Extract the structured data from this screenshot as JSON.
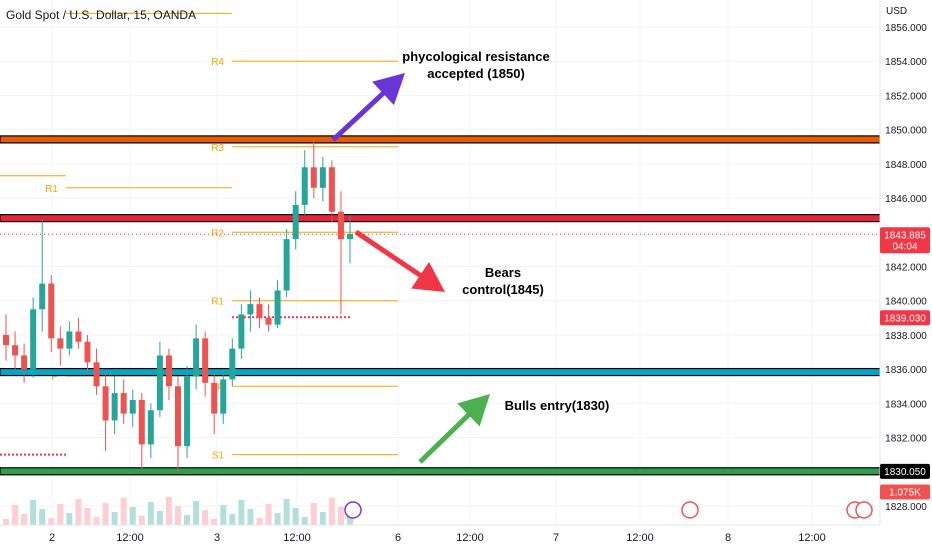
{
  "header": {
    "title": "Gold Spot / U.S. Dollar, 15, OANDA",
    "currency": "USD"
  },
  "colors": {
    "up": "#26a69a",
    "down": "#ef5350",
    "pivot": "#f7a600",
    "resistance_band": "#e65c00",
    "bears_band": "#e8223a",
    "bull_band": "#00a9c8",
    "support_band": "#2e9e4f",
    "arrow_purple": "#6a35d6",
    "arrow_red": "#f23645",
    "arrow_green": "#4caf50"
  },
  "chart_data": {
    "type": "candlestick",
    "title": "Gold Spot / U.S. Dollar, 15, OANDA",
    "ylim": [
      1827,
      1857
    ],
    "y_ticks": [
      "1856.000",
      "1854.000",
      "1852.000",
      "1850.000",
      "1848.000",
      "1846.000",
      "1844.000",
      "1842.000",
      "1840.000",
      "1838.000",
      "1836.000",
      "1834.000",
      "1832.000",
      "1830.000",
      "1828.000"
    ],
    "x_ticks": [
      "2",
      "12:00",
      "3",
      "12:00",
      "6",
      "12:00",
      "7",
      "12:00",
      "8",
      "12:00"
    ],
    "candles": [
      {
        "o": 1838.0,
        "h": 1839.2,
        "l": 1836.5,
        "c": 1837.4
      },
      {
        "o": 1837.4,
        "h": 1838.2,
        "l": 1836.0,
        "c": 1836.8
      },
      {
        "o": 1836.8,
        "h": 1837.5,
        "l": 1835.2,
        "c": 1836.0
      },
      {
        "o": 1836.0,
        "h": 1840.2,
        "l": 1835.5,
        "c": 1839.5
      },
      {
        "o": 1839.5,
        "h": 1844.8,
        "l": 1838.2,
        "c": 1841.0
      },
      {
        "o": 1841.0,
        "h": 1841.5,
        "l": 1837.0,
        "c": 1837.8
      },
      {
        "o": 1837.8,
        "h": 1838.5,
        "l": 1836.2,
        "c": 1837.2
      },
      {
        "o": 1837.2,
        "h": 1838.8,
        "l": 1836.8,
        "c": 1838.2
      },
      {
        "o": 1838.2,
        "h": 1839.0,
        "l": 1837.2,
        "c": 1837.6
      },
      {
        "o": 1837.6,
        "h": 1838.0,
        "l": 1835.8,
        "c": 1836.4
      },
      {
        "o": 1836.4,
        "h": 1837.2,
        "l": 1834.5,
        "c": 1835.0
      },
      {
        "o": 1835.0,
        "h": 1835.8,
        "l": 1831.2,
        "c": 1833.0
      },
      {
        "o": 1833.0,
        "h": 1835.6,
        "l": 1832.2,
        "c": 1834.6
      },
      {
        "o": 1834.6,
        "h": 1835.4,
        "l": 1832.8,
        "c": 1833.4
      },
      {
        "o": 1833.4,
        "h": 1834.8,
        "l": 1832.6,
        "c": 1834.2
      },
      {
        "o": 1834.2,
        "h": 1834.6,
        "l": 1830.2,
        "c": 1831.6
      },
      {
        "o": 1831.6,
        "h": 1834.0,
        "l": 1830.8,
        "c": 1833.6
      },
      {
        "o": 1833.6,
        "h": 1837.6,
        "l": 1833.2,
        "c": 1836.8
      },
      {
        "o": 1836.8,
        "h": 1837.2,
        "l": 1834.2,
        "c": 1835.0
      },
      {
        "o": 1835.0,
        "h": 1835.6,
        "l": 1830.0,
        "c": 1831.5
      },
      {
        "o": 1831.5,
        "h": 1836.2,
        "l": 1830.8,
        "c": 1835.6
      },
      {
        "o": 1835.6,
        "h": 1838.6,
        "l": 1834.8,
        "c": 1837.8
      },
      {
        "o": 1837.8,
        "h": 1838.2,
        "l": 1834.4,
        "c": 1835.2
      },
      {
        "o": 1835.2,
        "h": 1835.8,
        "l": 1832.2,
        "c": 1833.4
      },
      {
        "o": 1833.4,
        "h": 1836.0,
        "l": 1832.8,
        "c": 1835.4
      },
      {
        "o": 1835.4,
        "h": 1837.8,
        "l": 1835.0,
        "c": 1837.2
      },
      {
        "o": 1837.2,
        "h": 1839.8,
        "l": 1836.6,
        "c": 1839.2
      },
      {
        "o": 1839.2,
        "h": 1840.6,
        "l": 1838.2,
        "c": 1839.8
      },
      {
        "o": 1839.8,
        "h": 1840.2,
        "l": 1838.4,
        "c": 1839.0
      },
      {
        "o": 1839.0,
        "h": 1839.8,
        "l": 1838.2,
        "c": 1838.6
      },
      {
        "o": 1838.6,
        "h": 1841.2,
        "l": 1838.4,
        "c": 1840.6
      },
      {
        "o": 1840.6,
        "h": 1844.2,
        "l": 1840.2,
        "c": 1843.6
      },
      {
        "o": 1843.6,
        "h": 1846.4,
        "l": 1843.0,
        "c": 1845.6
      },
      {
        "o": 1845.6,
        "h": 1848.8,
        "l": 1845.0,
        "c": 1847.8
      },
      {
        "o": 1847.8,
        "h": 1849.4,
        "l": 1846.0,
        "c": 1846.6
      },
      {
        "o": 1846.6,
        "h": 1848.4,
        "l": 1845.8,
        "c": 1847.8
      },
      {
        "o": 1847.8,
        "h": 1848.2,
        "l": 1844.6,
        "c": 1845.2
      },
      {
        "o": 1845.2,
        "h": 1846.4,
        "l": 1839.2,
        "c": 1843.6
      },
      {
        "o": 1843.6,
        "h": 1845.0,
        "l": 1842.2,
        "c": 1843.9
      }
    ],
    "pivot_levels": [
      {
        "name": "R4",
        "value": 1854.0
      },
      {
        "name": "R3",
        "value": 1849.0
      },
      {
        "name": "R2",
        "value": 1844.0
      },
      {
        "name": "R1",
        "value": 1840.0
      },
      {
        "name": "P",
        "value": 1835.0
      },
      {
        "name": "S1",
        "value": 1831.0
      }
    ],
    "prev_pivot_levels": [
      {
        "name": "R1",
        "value": 1846.6
      },
      {
        "name": "P",
        "value": 1835.6
      }
    ],
    "zones": [
      {
        "name": "resistance",
        "value": 1849.4
      },
      {
        "name": "bears",
        "value": 1844.8
      },
      {
        "name": "bulls",
        "value": 1835.8
      },
      {
        "name": "support",
        "value": 1830.0
      }
    ],
    "price_tags": [
      {
        "label": "1843.885",
        "sub": "04:04",
        "value": 1843.885,
        "color": "#f23645"
      },
      {
        "label": "1839.030",
        "value": 1839.03,
        "color": "#f23645"
      },
      {
        "label": "1830.050",
        "value": 1830.05,
        "color": "#000000"
      },
      {
        "label": "1.075K",
        "value": 1828.85,
        "color": "#ef5350"
      }
    ]
  },
  "annotations": {
    "resistance_text": "phycological resistance\naccepted (1850)",
    "bears_text": "Bears control(1845)",
    "bulls_text": "Bulls entry(1830)"
  }
}
